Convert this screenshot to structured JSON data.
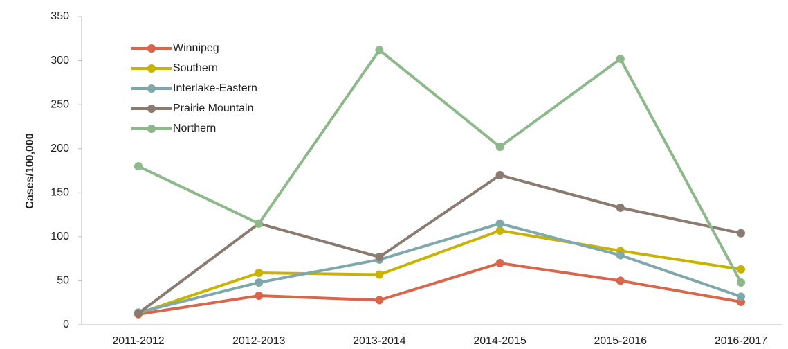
{
  "chart_data": {
    "type": "line",
    "y_label": "Cases/100,000",
    "categories": [
      "2011-2012",
      "2012-2013",
      "2013-2014",
      "2014-2015",
      "2015-2016",
      "2016-2017"
    ],
    "series": [
      {
        "name": "Winnipeg",
        "color": "#d9664a",
        "values": [
          12,
          33,
          28,
          70,
          50,
          26
        ]
      },
      {
        "name": "Southern",
        "color": "#c8b400",
        "values": [
          13,
          59,
          57,
          107,
          84,
          63
        ]
      },
      {
        "name": "Interlake-Eastern",
        "color": "#7fa8ad",
        "values": [
          14,
          48,
          74,
          115,
          79,
          32
        ]
      },
      {
        "name": "Prairie Mountain",
        "color": "#8b7a70",
        "values": [
          13,
          115,
          77,
          170,
          133,
          104
        ]
      },
      {
        "name": "Northern",
        "color": "#8db88a",
        "values": [
          180,
          115,
          312,
          202,
          302,
          48
        ]
      }
    ],
    "ylim": [
      0,
      350
    ],
    "yticks": [
      0,
      50,
      100,
      150,
      200,
      250,
      300,
      350
    ],
    "legend": "upper left",
    "grid": false
  }
}
